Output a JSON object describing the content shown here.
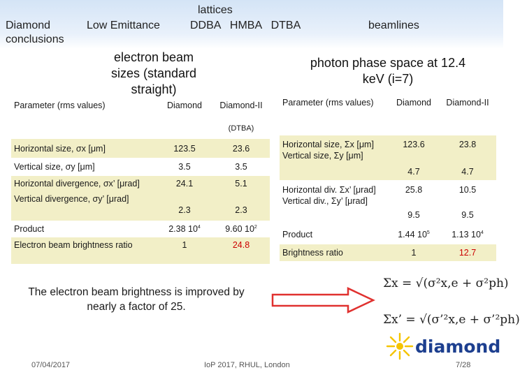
{
  "header": {
    "nav_diamond": "Diamond",
    "nav_conclusions": "conclusions",
    "nav_low_emittance": "Low Emittance",
    "nav_lattices": "lattices",
    "nav_lattice_types": "DDBA   HMBA   DTBA",
    "nav_beamlines": "beamlines"
  },
  "left": {
    "heading": "electron beam sizes (standard straight)",
    "col_param": "Parameter (rms values)",
    "col_diamond": "Diamond",
    "col_diamond2": "Diamond-II",
    "col_dtba": "(DTBA)",
    "rows": [
      {
        "label": "Horizontal size, σx [μm]",
        "v1": "123.5",
        "v2": "23.6"
      },
      {
        "label": "Vertical size, σy  [μm]",
        "v1": "3.5",
        "v2": "3.5"
      },
      {
        "label": "Horizontal divergence, σx’ [μrad]",
        "v1": "24.1",
        "v2": "5.1"
      },
      {
        "label": "Vertical divergence, σy’  [μrad]",
        "v1": "2.3",
        "v2": "2.3"
      },
      {
        "label": "Product",
        "v1_base": "2.38 10",
        "v1_exp": "4",
        "v2_base": "9.60 10",
        "v2_exp": "2"
      },
      {
        "label": "Electron beam brightness ratio",
        "v1": "1",
        "v2": "24.8"
      }
    ]
  },
  "right": {
    "heading": "photon phase space at 12.4 keV (i=7)",
    "col_param": "Parameter (rms values)",
    "col_diamond": "Diamond",
    "col_diamond2": "Diamond-II",
    "rows": [
      {
        "label_a": "Horizontal size, Σx [μm]",
        "label_b": "Vertical size, Σy  [μm]",
        "v1a": "123.6",
        "v2a": "23.8",
        "v1b": "4.7",
        "v2b": "4.7"
      },
      {
        "label_a": "Horizontal div. Σx’ [μrad]",
        "label_b": "Vertical div., Σy’ [μrad]",
        "v1a": "25.8",
        "v2a": "10.5",
        "v1b": "9.5",
        "v2b": "9.5"
      },
      {
        "label": "Product",
        "v1_base": "1.44 10",
        "v1_exp": "5",
        "v2_base": "1.13 10",
        "v2_exp": "4"
      },
      {
        "label": "Brightness ratio",
        "v1": "1",
        "v2": "12.7"
      }
    ]
  },
  "conclusion": "The electron beam brightness is improved by nearly a factor of 25.",
  "formula_1": "Σx = √(σ²x,e + σ²ph)",
  "formula_2": "Σx’ = √(σ’²x,e + σ’²ph)",
  "logo_text": "diamond",
  "footer": {
    "date": "07/04/2017",
    "venue": "IoP 2017, RHUL, London",
    "page": "7/28"
  },
  "colors": {
    "row_highlight": "#f2efc7",
    "header_band": "#d4e4f6",
    "arrow": "#e0312f",
    "highlight_value": "#cc0000",
    "logo_blue": "#1d3f8f",
    "logo_yellow": "#f5c400"
  }
}
